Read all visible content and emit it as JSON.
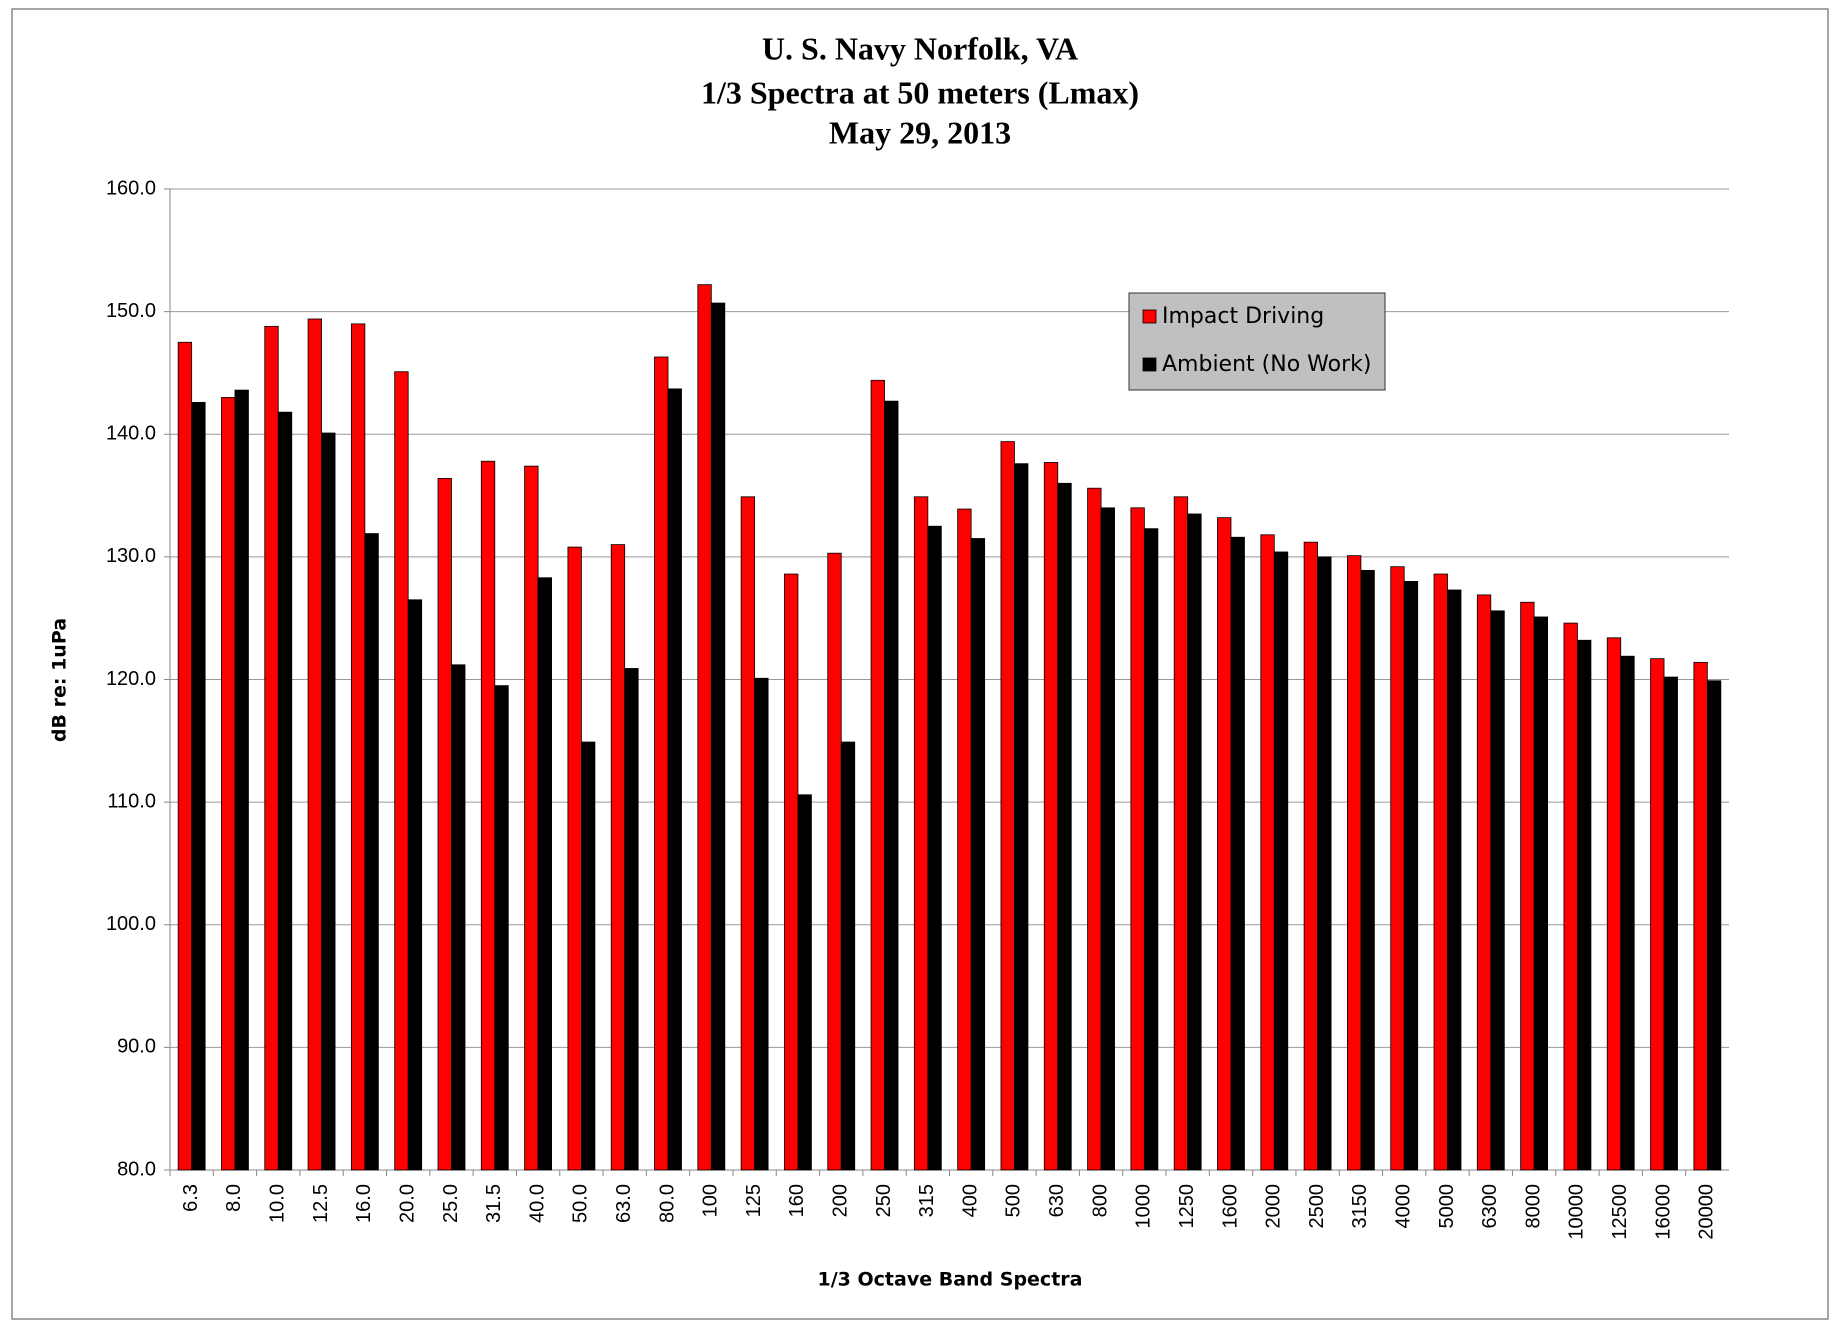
{
  "chart_data": {
    "type": "bar",
    "title": [
      "U. S. Navy Norfolk, VA",
      "1/3 Spectra at 50 meters (Lmax)",
      "May 29, 2013"
    ],
    "y_label": "dB re: 1uPa",
    "x_label": "1/3 Octave Band Spectra",
    "categories": [
      "6.3",
      "8.0",
      "10.0",
      "12.5",
      "16.0",
      "20.0",
      "25.0",
      "31.5",
      "40.0",
      "50.0",
      "63.0",
      "80.0",
      "100",
      "125",
      "160",
      "200",
      "250",
      "315",
      "400",
      "500",
      "630",
      "800",
      "1000",
      "1250",
      "1600",
      "2000",
      "2500",
      "3150",
      "4000",
      "5000",
      "6300",
      "8000",
      "10000",
      "12500",
      "16000",
      "20000"
    ],
    "series": [
      {
        "name": "Impact Driving",
        "color": "#ff0000",
        "values": [
          147.5,
          143.0,
          148.8,
          149.4,
          149.0,
          145.1,
          136.4,
          137.8,
          137.4,
          130.8,
          131.0,
          146.3,
          152.2,
          134.9,
          128.6,
          130.3,
          144.4,
          134.9,
          133.9,
          139.4,
          137.7,
          135.6,
          134.0,
          134.9,
          133.2,
          131.8,
          131.2,
          130.1,
          129.2,
          128.6,
          126.9,
          126.3,
          124.6,
          123.4,
          121.7,
          121.4
        ]
      },
      {
        "name": "Ambient (No Work)",
        "color": "#000000",
        "values": [
          142.6,
          143.6,
          141.8,
          140.1,
          131.9,
          126.5,
          121.2,
          119.5,
          128.3,
          114.9,
          120.9,
          143.7,
          150.7,
          120.1,
          110.6,
          114.9,
          142.7,
          132.5,
          131.5,
          137.6,
          136.0,
          134.0,
          132.3,
          133.5,
          131.6,
          130.4,
          130.0,
          128.9,
          128.0,
          127.3,
          125.6,
          125.1,
          123.2,
          121.9,
          120.2,
          119.9
        ]
      }
    ],
    "ylim": [
      80,
      160
    ],
    "yticks": [
      {
        "value": 80,
        "label": "80.0"
      },
      {
        "value": 90,
        "label": "90.0"
      },
      {
        "value": 100,
        "label": "100.0"
      },
      {
        "value": 110,
        "label": "110.0"
      },
      {
        "value": 120,
        "label": "120.0"
      },
      {
        "value": 130,
        "label": "130.0"
      },
      {
        "value": 140,
        "label": "140.0"
      },
      {
        "value": 150,
        "label": "150.0"
      },
      {
        "value": 160,
        "label": "160.0"
      }
    ],
    "grid": true,
    "legend": "upper-right"
  }
}
